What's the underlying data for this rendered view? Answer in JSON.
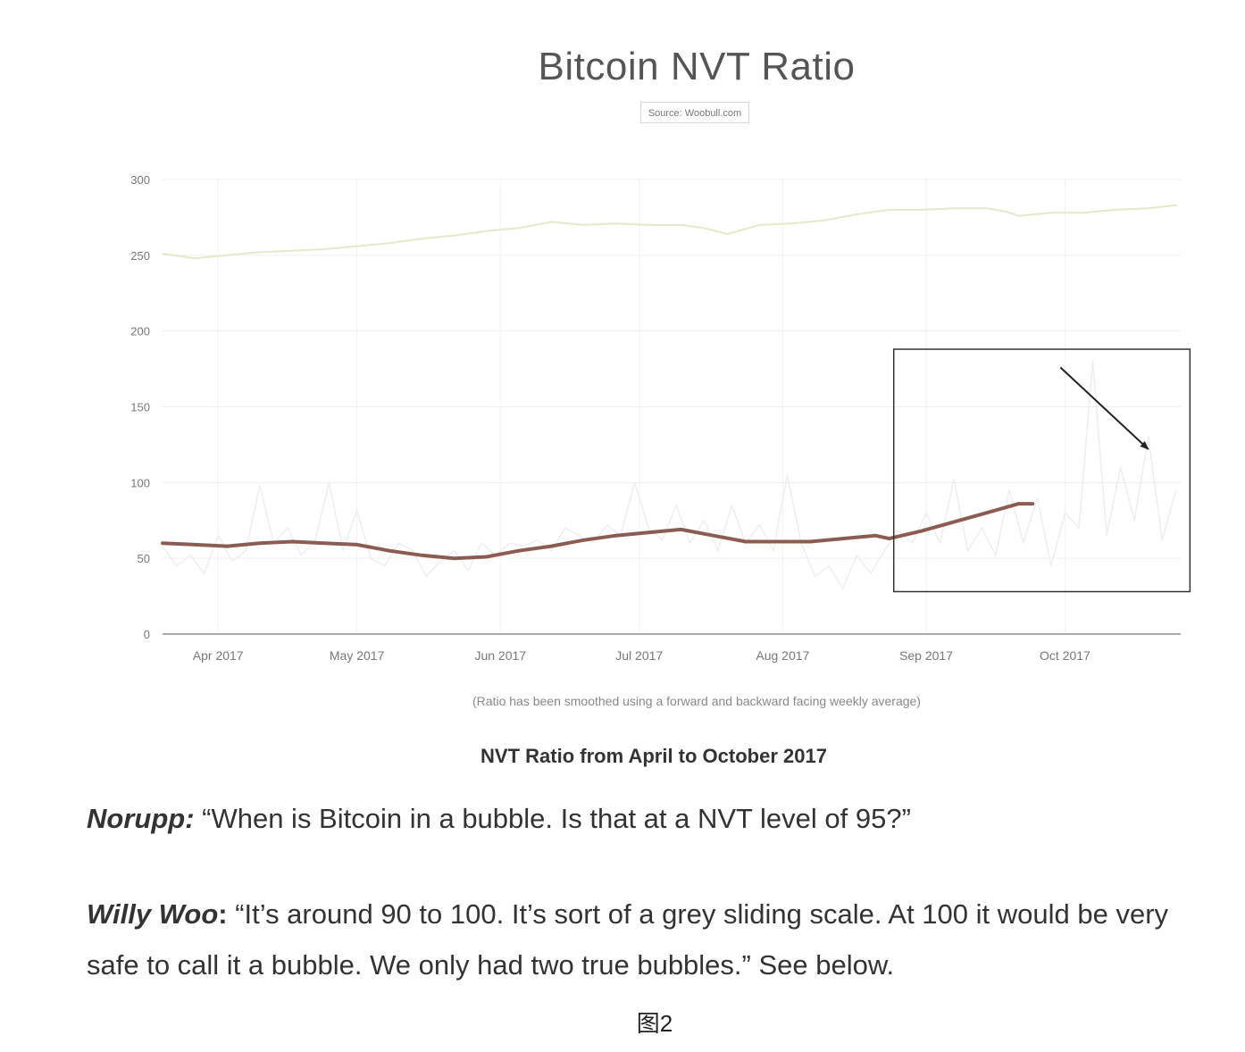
{
  "chart_data": {
    "type": "line",
    "title": "Bitcoin NVT Ratio",
    "subtitle": "Source: Woobull.com",
    "xlabel": "",
    "ylabel": "",
    "footnote": "(Ratio has been smoothed using a forward and backward facing weekly average)",
    "ylim": [
      0,
      300
    ],
    "yticks": [
      0,
      50,
      100,
      150,
      200,
      250,
      300
    ],
    "xlim": [
      "2017-03-20",
      "2017-10-26"
    ],
    "xticks": [
      {
        "date": "2017-04-01",
        "label": "Apr 2017"
      },
      {
        "date": "2017-05-01",
        "label": "May 2017"
      },
      {
        "date": "2017-06-01",
        "label": "Jun 2017"
      },
      {
        "date": "2017-07-01",
        "label": "Jul 2017"
      },
      {
        "date": "2017-08-01",
        "label": "Aug 2017"
      },
      {
        "date": "2017-09-01",
        "label": "Sep 2017"
      },
      {
        "date": "2017-10-01",
        "label": "Oct 2017"
      }
    ],
    "grid": true,
    "series": [
      {
        "color": "#e6e8c8",
        "x": [
          "2017-03-20",
          "2017-03-27",
          "2017-04-03",
          "2017-04-10",
          "2017-04-17",
          "2017-04-24",
          "2017-05-01",
          "2017-05-08",
          "2017-05-15",
          "2017-05-22",
          "2017-05-29",
          "2017-06-05",
          "2017-06-12",
          "2017-06-19",
          "2017-06-26",
          "2017-07-03",
          "2017-07-10",
          "2017-07-15",
          "2017-07-20",
          "2017-07-27",
          "2017-08-03",
          "2017-08-10",
          "2017-08-17",
          "2017-08-24",
          "2017-08-31",
          "2017-09-07",
          "2017-09-14",
          "2017-09-18",
          "2017-09-21",
          "2017-09-28",
          "2017-10-05",
          "2017-10-12",
          "2017-10-19",
          "2017-10-25"
        ],
        "values": [
          251,
          248,
          250,
          252,
          253,
          254,
          256,
          258,
          261,
          263,
          266,
          268,
          272,
          270,
          271,
          270,
          270,
          268,
          264,
          270,
          271,
          273,
          277,
          280,
          280,
          281,
          281,
          279,
          276,
          278,
          278,
          280,
          281,
          283
        ]
      },
      {
        "color": "#eeeeee",
        "x": [
          "2017-03-20",
          "2017-03-23",
          "2017-03-26",
          "2017-03-29",
          "2017-04-01",
          "2017-04-04",
          "2017-04-07",
          "2017-04-10",
          "2017-04-13",
          "2017-04-16",
          "2017-04-19",
          "2017-04-22",
          "2017-04-25",
          "2017-04-28",
          "2017-05-01",
          "2017-05-04",
          "2017-05-07",
          "2017-05-10",
          "2017-05-13",
          "2017-05-16",
          "2017-05-19",
          "2017-05-22",
          "2017-05-25",
          "2017-05-28",
          "2017-05-31",
          "2017-06-03",
          "2017-06-06",
          "2017-06-09",
          "2017-06-12",
          "2017-06-15",
          "2017-06-18",
          "2017-06-21",
          "2017-06-24",
          "2017-06-27",
          "2017-06-30",
          "2017-07-03",
          "2017-07-06",
          "2017-07-09",
          "2017-07-12",
          "2017-07-15",
          "2017-07-18",
          "2017-07-21",
          "2017-07-24",
          "2017-07-27",
          "2017-07-30",
          "2017-08-02",
          "2017-08-05",
          "2017-08-08",
          "2017-08-11",
          "2017-08-14",
          "2017-08-17",
          "2017-08-20",
          "2017-08-23",
          "2017-08-26",
          "2017-08-29",
          "2017-09-01",
          "2017-09-04",
          "2017-09-07",
          "2017-09-10",
          "2017-09-13",
          "2017-09-16",
          "2017-09-19",
          "2017-09-22",
          "2017-09-25",
          "2017-09-28",
          "2017-10-01",
          "2017-10-04",
          "2017-10-07",
          "2017-10-10",
          "2017-10-13",
          "2017-10-16",
          "2017-10-19",
          "2017-10-22",
          "2017-10-25"
        ],
        "values": [
          58,
          45,
          52,
          40,
          65,
          48,
          55,
          98,
          60,
          70,
          52,
          62,
          100,
          55,
          82,
          50,
          45,
          60,
          55,
          38,
          48,
          55,
          42,
          60,
          52,
          60,
          58,
          62,
          55,
          70,
          65,
          60,
          72,
          65,
          100,
          70,
          62,
          85,
          60,
          75,
          55,
          85,
          60,
          72,
          55,
          105,
          60,
          38,
          45,
          30,
          52,
          40,
          55,
          68,
          60,
          80,
          60,
          102,
          55,
          70,
          52,
          95,
          60,
          90,
          45,
          80,
          70,
          180,
          65,
          110,
          75,
          130,
          62,
          95
        ]
      },
      {
        "color": "#8b5d52",
        "x": [
          "2017-03-20",
          "2017-03-27",
          "2017-04-03",
          "2017-04-10",
          "2017-04-17",
          "2017-04-24",
          "2017-05-01",
          "2017-05-08",
          "2017-05-15",
          "2017-05-22",
          "2017-05-29",
          "2017-06-05",
          "2017-06-12",
          "2017-06-19",
          "2017-06-26",
          "2017-07-03",
          "2017-07-10",
          "2017-07-17",
          "2017-07-24",
          "2017-07-31",
          "2017-08-07",
          "2017-08-14",
          "2017-08-21",
          "2017-08-24",
          "2017-08-31",
          "2017-09-07",
          "2017-09-14",
          "2017-09-21",
          "2017-09-24"
        ],
        "values": [
          60,
          59,
          58,
          60,
          61,
          60,
          59,
          55,
          52,
          50,
          51,
          55,
          58,
          62,
          65,
          67,
          69,
          65,
          61,
          61,
          61,
          63,
          65,
          63,
          68,
          74,
          80,
          86,
          86
        ]
      }
    ],
    "annotations": [
      {
        "type": "box",
        "x0": "2017-08-25",
        "x1": "2017-10-28",
        "y0": 28,
        "y1": 188
      },
      {
        "type": "arrow",
        "from": [
          "2017-09-30",
          176
        ],
        "to": [
          "2017-10-19",
          122
        ]
      }
    ]
  },
  "caption": "NVT Ratio from April to October 2017",
  "paragraphs": [
    {
      "speaker": "Norupp:",
      "text": " “When is Bitcoin in a bubble. Is that at a NVT level of 95?”"
    },
    {
      "speaker": "Willy Woo",
      "colon": ":",
      "text": " “It’s around 90 to 100. It’s sort of a grey sliding scale. At 100 it would be very safe to call it a bubble. We only had two true bubbles.” See below."
    }
  ],
  "figure_label": "图2"
}
